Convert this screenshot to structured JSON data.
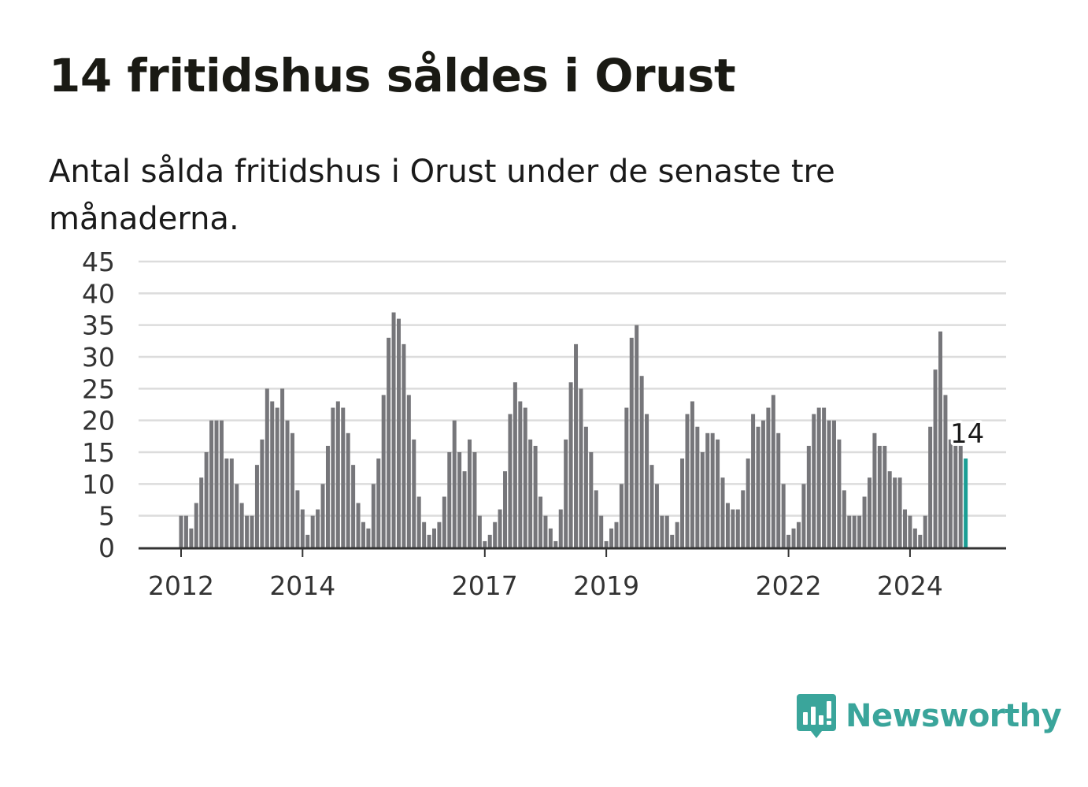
{
  "title": "14 fritidshus såldes i Orust",
  "subtitle": "Antal sålda fritidshus i Orust under de senaste tre månaderna.",
  "brand": {
    "name": "Newsworthy",
    "color": "#3aa59b",
    "icon": "newsworthy-logo-icon"
  },
  "colors": {
    "bar": "#76767a",
    "highlight": "#1a9e94",
    "grid": "#dcdcdc",
    "axis": "#333333"
  },
  "chart_data": {
    "type": "bar",
    "title": "14 fritidshus såldes i Orust",
    "xlabel": "",
    "ylabel": "",
    "ylim": [
      0,
      45
    ],
    "yticks": [
      0,
      5,
      10,
      15,
      20,
      25,
      30,
      35,
      40,
      45
    ],
    "xticks": [
      {
        "label": "2012",
        "index": 0
      },
      {
        "label": "2014",
        "index": 24
      },
      {
        "label": "2017",
        "index": 60
      },
      {
        "label": "2019",
        "index": 84
      },
      {
        "label": "2022",
        "index": 120
      },
      {
        "label": "2024",
        "index": 144
      }
    ],
    "values": [
      5,
      5,
      3,
      7,
      11,
      15,
      20,
      20,
      20,
      14,
      14,
      10,
      7,
      5,
      5,
      13,
      17,
      25,
      23,
      22,
      25,
      20,
      18,
      9,
      6,
      2,
      5,
      6,
      10,
      16,
      22,
      23,
      22,
      18,
      13,
      7,
      4,
      3,
      10,
      14,
      24,
      33,
      37,
      36,
      32,
      24,
      17,
      8,
      4,
      2,
      3,
      4,
      8,
      15,
      20,
      15,
      12,
      17,
      15,
      5,
      1,
      2,
      4,
      6,
      12,
      21,
      26,
      23,
      22,
      17,
      16,
      8,
      5,
      3,
      1,
      6,
      17,
      26,
      32,
      25,
      19,
      15,
      9,
      5,
      1,
      3,
      4,
      10,
      22,
      33,
      35,
      27,
      21,
      13,
      10,
      5,
      5,
      2,
      4,
      14,
      21,
      23,
      19,
      15,
      18,
      18,
      17,
      11,
      7,
      6,
      6,
      9,
      14,
      21,
      19,
      20,
      22,
      24,
      18,
      10,
      2,
      3,
      4,
      10,
      16,
      21,
      22,
      22,
      20,
      20,
      17,
      9,
      5,
      5,
      5,
      8,
      11,
      18,
      16,
      16,
      12,
      11,
      11,
      6,
      5,
      3,
      2,
      5,
      19,
      28,
      34,
      24,
      17,
      16,
      16,
      14
    ],
    "highlight": {
      "index": 155,
      "label": "14"
    },
    "grid": true,
    "legend": "none"
  }
}
